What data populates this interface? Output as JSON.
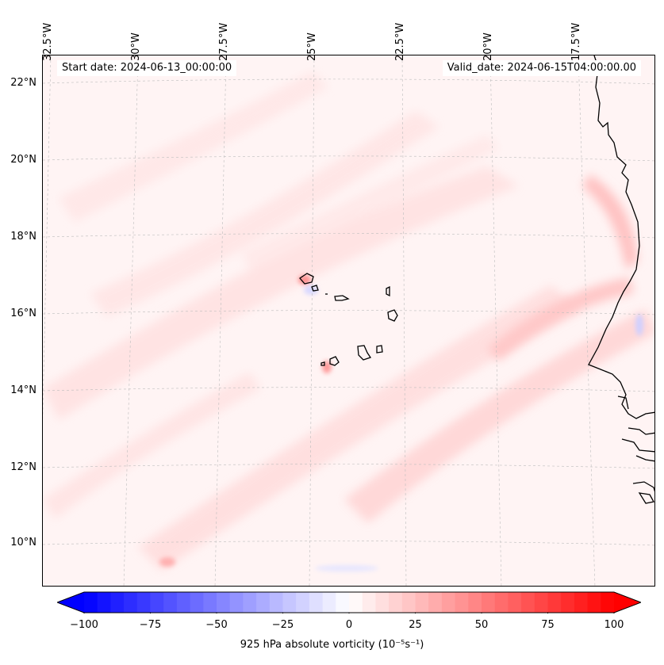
{
  "map": {
    "start_date_text": "Start date: 2024-06-13_00:00:00",
    "valid_date_text": "Valid_date: 2024-06-15T04:00:00.00",
    "lon_labels": [
      "32.5°W",
      "30°W",
      "27.5°W",
      "25°W",
      "22.5°W",
      "20°W",
      "17.5°W"
    ],
    "lat_labels": [
      "22°N",
      "20°N",
      "18°N",
      "16°N",
      "14°N",
      "12°N",
      "10°N"
    ],
    "variable": "925 hPa absolute vorticity",
    "units": "10⁻⁵s⁻¹",
    "colorbar_label": "925 hPa absolute vorticity (10⁻⁵s⁻¹)",
    "colormap": {
      "negative": "#0000ff",
      "neutral": "#ffffff",
      "positive": "#ff0000"
    },
    "coastline_color": "#000000",
    "gridline_color": "#b0b0b0"
  },
  "colorbar": {
    "min": -100,
    "max": 100,
    "tick_values": [
      -100,
      -75,
      -50,
      -25,
      0,
      25,
      50,
      75,
      100
    ],
    "tick_labels": [
      "−100",
      "−75",
      "−50",
      "−25",
      "0",
      "25",
      "50",
      "75",
      "100"
    ],
    "extend": "both"
  }
}
